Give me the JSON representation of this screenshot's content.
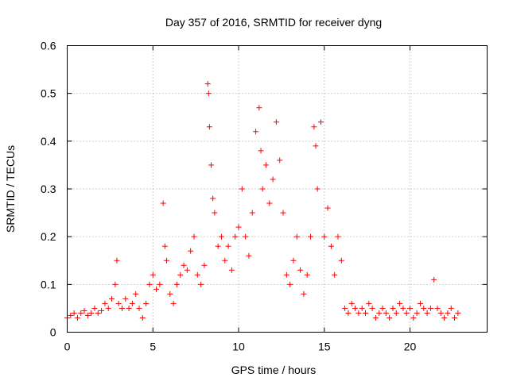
{
  "chart_data": {
    "type": "scatter",
    "title": "Day 357 of 2016, SRMTID for receiver dyng",
    "xlabel": "GPS time / hours",
    "ylabel": "SRMTID / TECUs",
    "xlim": [
      0,
      24.5
    ],
    "ylim": [
      0,
      0.6
    ],
    "xticks": [
      0,
      5,
      10,
      15,
      20
    ],
    "yticks": [
      0,
      0.1,
      0.2,
      0.3,
      0.4,
      0.5,
      0.6
    ],
    "xtick_labels": [
      "0",
      "5",
      "10",
      "15",
      "20"
    ],
    "ytick_labels": [
      "0",
      "0.1",
      "0.2",
      "0.3",
      "0.4",
      "0.5",
      "0.6"
    ],
    "grid": true,
    "marker": "plus",
    "color": "#ff0000",
    "series": [
      {
        "name": "SRMTID",
        "x": [
          0.0,
          0.2,
          0.4,
          0.6,
          0.8,
          1.0,
          1.2,
          1.4,
          1.6,
          1.8,
          2.0,
          2.2,
          2.4,
          2.6,
          2.8,
          2.9,
          3.0,
          3.2,
          3.4,
          3.6,
          3.8,
          4.0,
          4.2,
          4.4,
          4.6,
          4.8,
          5.0,
          5.2,
          5.4,
          5.6,
          5.7,
          5.8,
          6.0,
          6.2,
          6.4,
          6.6,
          6.8,
          7.0,
          7.2,
          7.4,
          7.6,
          7.8,
          8.0,
          8.2,
          8.25,
          8.3,
          8.4,
          8.5,
          8.6,
          8.8,
          9.0,
          9.2,
          9.4,
          9.6,
          9.8,
          10.0,
          10.2,
          10.4,
          10.6,
          10.8,
          11.0,
          11.2,
          11.3,
          11.4,
          11.6,
          11.8,
          12.0,
          12.2,
          12.4,
          12.6,
          12.8,
          13.0,
          13.2,
          13.4,
          13.6,
          13.8,
          14.0,
          14.2,
          14.4,
          14.5,
          14.6,
          14.8,
          15.0,
          15.2,
          15.4,
          15.6,
          15.8,
          16.0,
          16.2,
          16.4,
          16.6,
          16.8,
          17.0,
          17.2,
          17.4,
          17.6,
          17.8,
          18.0,
          18.2,
          18.4,
          18.6,
          18.8,
          19.0,
          19.2,
          19.4,
          19.6,
          19.8,
          20.0,
          20.2,
          20.4,
          20.6,
          20.8,
          21.0,
          21.2,
          21.4,
          21.6,
          21.8,
          22.0,
          22.2,
          22.4,
          22.6,
          22.8
        ],
        "y": [
          0.03,
          0.035,
          0.04,
          0.03,
          0.04,
          0.045,
          0.035,
          0.04,
          0.05,
          0.04,
          0.045,
          0.06,
          0.05,
          0.07,
          0.1,
          0.15,
          0.06,
          0.05,
          0.07,
          0.05,
          0.06,
          0.08,
          0.05,
          0.03,
          0.06,
          0.1,
          0.12,
          0.09,
          0.1,
          0.27,
          0.18,
          0.15,
          0.08,
          0.06,
          0.1,
          0.12,
          0.14,
          0.13,
          0.17,
          0.2,
          0.12,
          0.1,
          0.14,
          0.52,
          0.5,
          0.43,
          0.35,
          0.28,
          0.25,
          0.18,
          0.2,
          0.15,
          0.18,
          0.13,
          0.2,
          0.22,
          0.3,
          0.2,
          0.16,
          0.25,
          0.42,
          0.47,
          0.38,
          0.3,
          0.35,
          0.27,
          0.32,
          0.44,
          0.36,
          0.25,
          0.12,
          0.1,
          0.15,
          0.2,
          0.13,
          0.08,
          0.12,
          0.2,
          0.43,
          0.39,
          0.3,
          0.44,
          0.2,
          0.26,
          0.18,
          0.12,
          0.2,
          0.15,
          0.05,
          0.04,
          0.06,
          0.05,
          0.04,
          0.05,
          0.04,
          0.06,
          0.05,
          0.03,
          0.04,
          0.05,
          0.04,
          0.03,
          0.05,
          0.04,
          0.06,
          0.05,
          0.04,
          0.05,
          0.03,
          0.04,
          0.06,
          0.05,
          0.04,
          0.05,
          0.11,
          0.05,
          0.04,
          0.03,
          0.04,
          0.05,
          0.03,
          0.04
        ]
      }
    ]
  }
}
